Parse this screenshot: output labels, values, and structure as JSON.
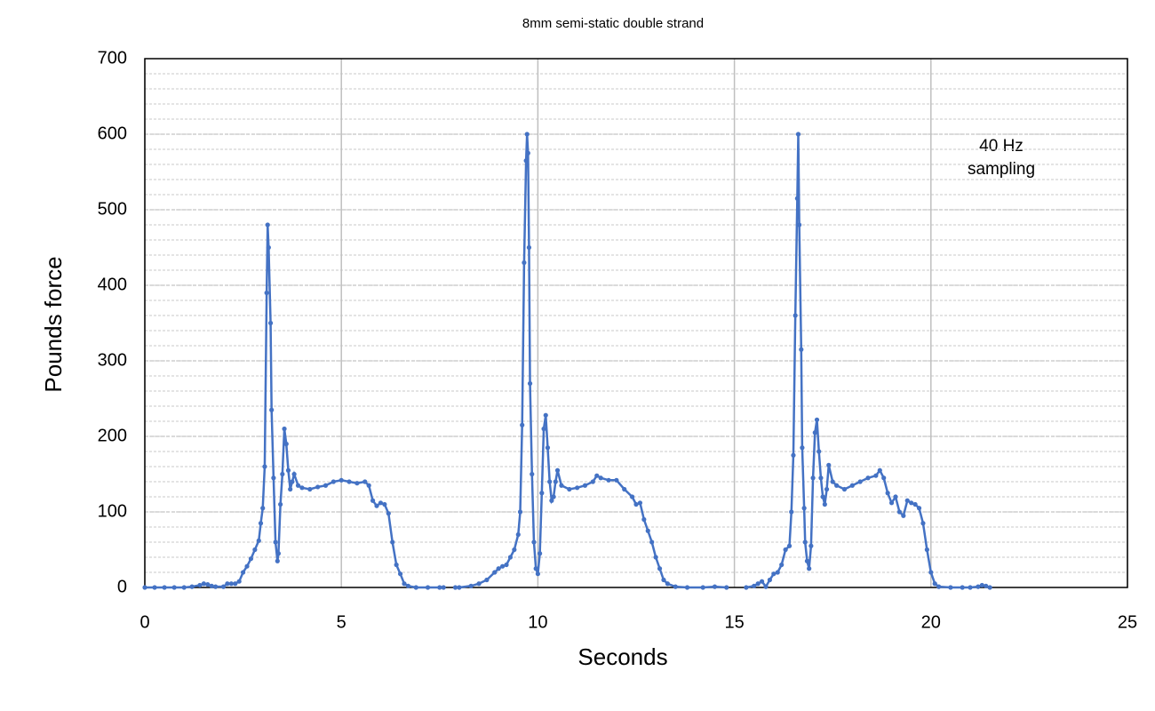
{
  "chart_data": {
    "type": "line",
    "title": "8mm semi-static double strand",
    "x_label": "Seconds",
    "y_label": "Pounds force",
    "annotation": [
      "40 Hz",
      "sampling"
    ],
    "xlim": [
      0,
      25
    ],
    "xticks": [
      0,
      5,
      10,
      15,
      20,
      25
    ],
    "ylim": [
      0,
      700
    ],
    "yticks": [
      0,
      100,
      200,
      300,
      400,
      500,
      600,
      700
    ],
    "y_minor_step": 20,
    "grid": true,
    "x": [
      0,
      0.25,
      0.5,
      0.75,
      1.0,
      1.2,
      1.4,
      1.5,
      1.6,
      1.7,
      1.8,
      2.0,
      2.1,
      2.2,
      2.3,
      2.4,
      2.5,
      2.6,
      2.7,
      2.8,
      2.9,
      2.95,
      3.0,
      3.05,
      3.1,
      3.125,
      3.15,
      3.2,
      3.225,
      3.275,
      3.325,
      3.375,
      3.4,
      3.45,
      3.5,
      3.55,
      3.6,
      3.65,
      3.7,
      3.75,
      3.8,
      3.9,
      4.0,
      4.2,
      4.4,
      4.6,
      4.8,
      5.0,
      5.2,
      5.4,
      5.6,
      5.7,
      5.8,
      5.9,
      6.0,
      6.1,
      6.2,
      6.3,
      6.4,
      6.5,
      6.6,
      6.7,
      6.9,
      7.2,
      7.5,
      7.6,
      7.75,
      7.9,
      8.0,
      8.3,
      8.5,
      8.7,
      8.9,
      9.0,
      9.1,
      9.2,
      9.3,
      9.4,
      9.5,
      9.55,
      9.6,
      9.65,
      9.7,
      9.725,
      9.75,
      9.775,
      9.8,
      9.85,
      9.9,
      9.95,
      10.0,
      10.05,
      10.1,
      10.15,
      10.2,
      10.25,
      10.3,
      10.35,
      10.4,
      10.45,
      10.5,
      10.6,
      10.8,
      11.0,
      11.2,
      11.4,
      11.5,
      11.6,
      11.8,
      12.0,
      12.2,
      12.4,
      12.5,
      12.6,
      12.7,
      12.8,
      12.9,
      13.0,
      13.1,
      13.2,
      13.3,
      13.5,
      13.8,
      14.2,
      14.5,
      14.8,
      15.05,
      15.3,
      15.5,
      15.6,
      15.7,
      15.8,
      15.9,
      16.0,
      16.1,
      16.2,
      16.3,
      16.4,
      16.45,
      16.5,
      16.55,
      16.6,
      16.625,
      16.65,
      16.7,
      16.725,
      16.775,
      16.8,
      16.85,
      16.9,
      16.95,
      17.0,
      17.05,
      17.1,
      17.15,
      17.2,
      17.25,
      17.3,
      17.35,
      17.4,
      17.5,
      17.6,
      17.8,
      18.0,
      18.2,
      18.4,
      18.6,
      18.7,
      18.8,
      18.9,
      19.0,
      19.1,
      19.2,
      19.3,
      19.4,
      19.5,
      19.6,
      19.7,
      19.8,
      19.9,
      20.0,
      20.1,
      20.2,
      20.5,
      20.8,
      21.0,
      21.2,
      21.3,
      21.4,
      21.5
    ],
    "series": [
      {
        "color": "#4472c4",
        "values": [
          0,
          0,
          0,
          0,
          0,
          1,
          3,
          5,
          4,
          2,
          1,
          1,
          5,
          5,
          5,
          8,
          20,
          28,
          38,
          50,
          62,
          85,
          105,
          160,
          390,
          480,
          450,
          350,
          235,
          145,
          60,
          35,
          45,
          110,
          150,
          210,
          190,
          155,
          130,
          140,
          150,
          135,
          132,
          130,
          133,
          135,
          140,
          142,
          140,
          138,
          140,
          135,
          115,
          108,
          112,
          110,
          98,
          60,
          30,
          18,
          5,
          2,
          0,
          0,
          0,
          0,
          null,
          0,
          0,
          2,
          5,
          10,
          20,
          25,
          28,
          30,
          40,
          50,
          70,
          100,
          215,
          430,
          565,
          600,
          575,
          450,
          270,
          150,
          60,
          25,
          18,
          45,
          125,
          210,
          228,
          185,
          140,
          115,
          120,
          140,
          155,
          135,
          130,
          132,
          135,
          140,
          148,
          145,
          142,
          142,
          130,
          120,
          110,
          112,
          90,
          75,
          60,
          40,
          25,
          10,
          5,
          1,
          0,
          0,
          1,
          0,
          null,
          0,
          2,
          5,
          8,
          1,
          10,
          18,
          20,
          30,
          50,
          55,
          100,
          175,
          360,
          515,
          600,
          480,
          315,
          185,
          105,
          60,
          35,
          25,
          55,
          145,
          205,
          222,
          180,
          145,
          120,
          110,
          130,
          162,
          140,
          135,
          130,
          135,
          140,
          145,
          148,
          155,
          145,
          125,
          112,
          120,
          100,
          95,
          115,
          112,
          110,
          105,
          85,
          50,
          20,
          5,
          1,
          0,
          0,
          0,
          1,
          3,
          2,
          0
        ]
      }
    ]
  }
}
